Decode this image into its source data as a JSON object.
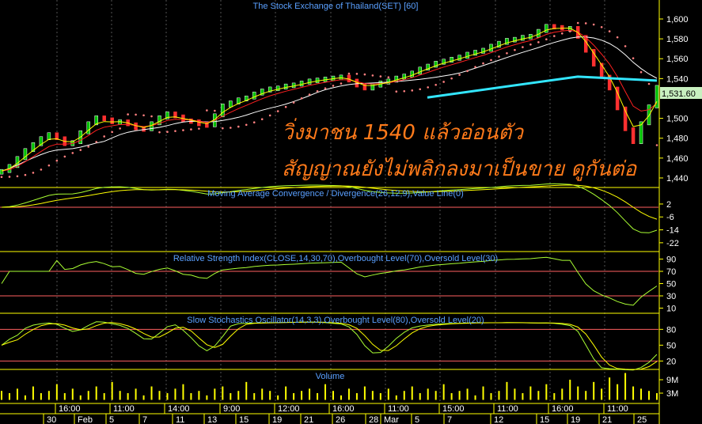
{
  "chart_data": {
    "type": "line",
    "title": "The Stock Exchange of Thailand(SET) [60]",
    "last_price_label": "1,531.60",
    "annotations": [
      "วิ่งมาชน 1540 แล้วอ่อนตัว",
      "สัญญาณยังไม่พลิกลงมาเป็นขาย ดูกันต่อ"
    ],
    "resistance_line": {
      "from": 1521,
      "to": 1542,
      "then": 1538,
      "color": "#33e6ff"
    },
    "price_axis": {
      "ylim": [
        1425,
        1620
      ],
      "ticks": [
        "1,600",
        "1,580",
        "1,560",
        "1,540",
        "1,520",
        "1,500",
        "1,480",
        "1,460",
        "1,440"
      ]
    },
    "close": [
      1447,
      1452,
      1460,
      1468,
      1474,
      1480,
      1484,
      1480,
      1474,
      1476,
      1486,
      1495,
      1501,
      1499,
      1496,
      1497,
      1494,
      1490,
      1489,
      1495,
      1501,
      1505,
      1502,
      1498,
      1497,
      1494,
      1493,
      1503,
      1513,
      1516,
      1519,
      1521,
      1525,
      1528,
      1530,
      1531,
      1533,
      1534,
      1536,
      1538,
      1539,
      1540,
      1541,
      1542,
      1538,
      1533,
      1530,
      1533,
      1536,
      1538,
      1541,
      1543,
      1546,
      1550,
      1553,
      1556,
      1558,
      1560,
      1562,
      1565,
      1567,
      1569,
      1573,
      1576,
      1579,
      1580,
      1582,
      1583,
      1588,
      1593,
      1592,
      1591,
      1591,
      1582,
      1568,
      1554,
      1542,
      1530,
      1510,
      1489,
      1476,
      1495,
      1512,
      1531.6
    ],
    "volume_m": [
      4,
      3,
      5,
      2,
      6,
      3,
      4,
      7,
      3,
      5,
      2,
      4,
      6,
      3,
      8,
      4,
      3,
      5,
      2,
      6,
      4,
      3,
      5,
      7,
      3,
      4,
      2,
      5,
      6,
      3,
      4,
      8,
      3,
      5,
      4,
      2,
      6,
      3,
      4,
      5,
      3,
      7,
      4,
      2,
      5,
      3,
      6,
      4,
      3,
      5,
      2,
      4,
      6,
      3,
      5,
      4,
      7,
      3,
      4,
      5,
      2,
      6,
      3,
      4,
      8,
      5,
      3,
      6,
      4,
      7,
      3,
      5,
      9,
      6,
      4,
      8,
      5,
      10,
      7,
      12,
      6,
      5,
      4,
      3
    ],
    "panels": [
      {
        "name": "macd",
        "title": "Moving Average Convergence / Divergence(26,12,9),Value Line(0)",
        "ticks": [
          "2",
          "-6",
          "-14",
          "-22"
        ]
      },
      {
        "name": "rsi",
        "title": "Relative Strength Index(CLOSE,14,30,70),Overbought Level(70),Oversold Level(30)",
        "ticks": [
          "90",
          "70",
          "50",
          "30",
          "10"
        ]
      },
      {
        "name": "stoch",
        "title": "Slow Stochastics Oscillator(14,3,3),Overbought Level(80),Oversold Level(20)",
        "ticks": [
          "80",
          "50",
          "20"
        ]
      },
      {
        "name": "volume",
        "title": "Volume",
        "ticks": [
          "9M",
          "3M"
        ]
      }
    ],
    "x_time_labels": [
      "16:00",
      "11:00",
      "14:00",
      "9:00",
      "12:00",
      "16:00",
      "11:00",
      "15:00",
      "11:00",
      "16:00",
      "11:00"
    ],
    "x_date_labels": [
      "30",
      "Feb",
      "5",
      "7",
      "11",
      "13",
      "15",
      "19",
      "21",
      "26",
      "28",
      "Mar",
      "5",
      "7",
      "12",
      "15",
      "19",
      "21",
      "25"
    ],
    "colors": {
      "axis": "#ffff00",
      "level": "#ff6060",
      "fast": "#aaff33",
      "slow": "#ffff00",
      "sar": "#ff8080",
      "ma_long": "#ffffff",
      "ma_mid": "#ff2020",
      "label_bg": "#c8f0c0"
    }
  }
}
